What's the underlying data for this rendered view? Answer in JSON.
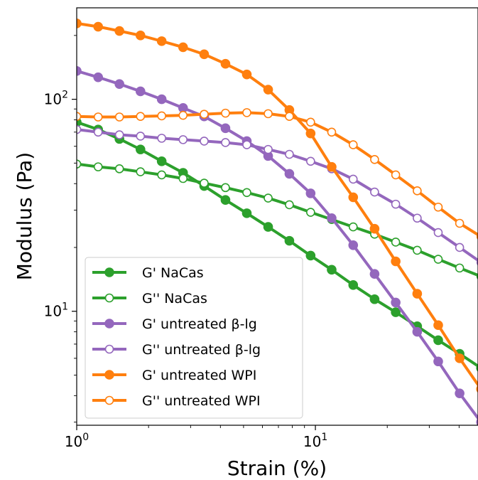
{
  "chart_data": {
    "type": "line",
    "xlabel": "Strain (%)",
    "ylabel": "Modulus (Pa)",
    "xscale": "log",
    "yscale": "log",
    "xlim": [
      1,
      48
    ],
    "ylim": [
      2.9,
      270
    ],
    "x_ticks": [
      {
        "base": "10",
        "exp": "0",
        "value": 1
      },
      {
        "base": "10",
        "exp": "1",
        "value": 10
      }
    ],
    "y_ticks": [
      {
        "base": "10",
        "exp": "1",
        "value": 10
      },
      {
        "base": "10",
        "exp": "2",
        "value": 100
      }
    ],
    "grid": false,
    "legend_position": "lower-left",
    "x": [
      1.0,
      1.23,
      1.51,
      1.85,
      2.27,
      2.79,
      3.42,
      4.2,
      5.16,
      6.34,
      7.78,
      9.55,
      11.7,
      14.4,
      17.7,
      21.7,
      26.7,
      32.7,
      40.2,
      49.4
    ],
    "series": [
      {
        "name": "G' NaCas",
        "color": "#2ca02c",
        "filled": true,
        "values": [
          78,
          72,
          65,
          58,
          51,
          45,
          39,
          33.5,
          29,
          25,
          21.5,
          18.3,
          15.7,
          13.3,
          11.4,
          9.9,
          8.5,
          7.3,
          6.3,
          5.4
        ]
      },
      {
        "name": "G'' NaCas",
        "color": "#2ca02c",
        "filled": false,
        "values": [
          49.5,
          48,
          47,
          45.5,
          44,
          42.3,
          40.2,
          38.3,
          36.3,
          34.2,
          31.8,
          29.3,
          27.1,
          25,
          23.1,
          21.2,
          19.4,
          17.6,
          16,
          14.6
        ]
      },
      {
        "name": "G' untreated β-lg",
        "color": "#9467bd",
        "filled": true,
        "values": [
          136,
          127,
          118,
          109,
          100,
          91,
          83,
          73,
          63.5,
          54,
          44.5,
          36,
          27.5,
          20.5,
          15,
          11,
          8,
          5.8,
          4.1,
          3.0
        ]
      },
      {
        "name": "G'' untreated β-lg",
        "color": "#9467bd",
        "filled": false,
        "values": [
          72,
          70,
          68,
          67,
          65.5,
          64.5,
          63.5,
          62.5,
          61,
          58,
          55,
          51,
          47,
          42,
          36.5,
          32,
          27.5,
          23.5,
          20,
          17
        ]
      },
      {
        "name": "G' untreated WPI",
        "color": "#ff7f0e",
        "filled": true,
        "values": [
          228,
          220,
          210,
          200,
          188,
          176,
          163,
          147,
          131,
          111,
          89,
          69,
          48,
          34.5,
          24.5,
          17.2,
          12.1,
          8.6,
          6.0,
          4.3
        ]
      },
      {
        "name": "G'' untreated WPI",
        "color": "#ff7f0e",
        "filled": false,
        "values": [
          83,
          82.5,
          82.5,
          83,
          83.5,
          84,
          85,
          86,
          86.5,
          85.5,
          83,
          78,
          70,
          61,
          52,
          44,
          37,
          31,
          26,
          22.5
        ]
      }
    ]
  }
}
